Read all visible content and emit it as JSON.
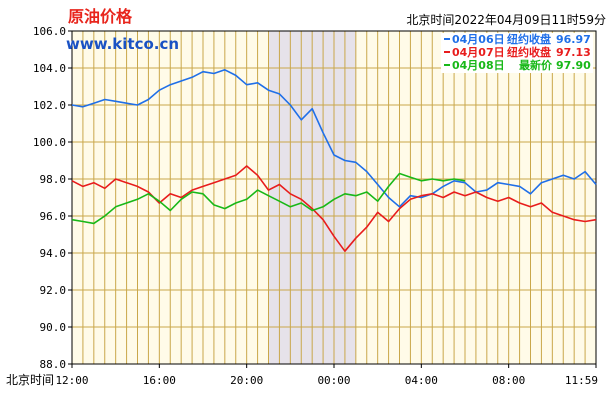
{
  "header": {
    "title": "原油价格",
    "site": "www.kitco.cn",
    "timestamp": "北京时间2022年04月09日11时59分"
  },
  "colors": {
    "background": "#ffffff",
    "plot_bg": "#fffbe8",
    "grid": "#c9a74a",
    "shade": "#e6e2ea",
    "title": "#e8251c",
    "site": "#1a52c4"
  },
  "chart_data": {
    "type": "line",
    "xlabel": "北京时间",
    "x_ticks": [
      "12:00",
      "16:00",
      "20:00",
      "00:00",
      "04:00",
      "08:00",
      "11:59"
    ],
    "x_range": [
      0,
      24
    ],
    "ylim": [
      88,
      106
    ],
    "y_ticks": [
      "88.0",
      "90.0",
      "92.0",
      "94.0",
      "96.0",
      "98.0",
      "100.0",
      "102.0",
      "104.0",
      "106.0"
    ],
    "grid": true,
    "legend_position": "top-right",
    "shaded_region": [
      9.0,
      13.0
    ],
    "series": [
      {
        "name": "04月06日",
        "legend_label": "纽约收盘",
        "legend_value": "96.97",
        "color": "#1f6fe8",
        "x": [
          0,
          0.5,
          1,
          1.5,
          2,
          2.5,
          3,
          3.5,
          4,
          4.5,
          5,
          5.5,
          6,
          6.5,
          7,
          7.5,
          8,
          8.5,
          9,
          9.5,
          10,
          10.5,
          11,
          11.5,
          12,
          12.5,
          13,
          13.5,
          14,
          14.5,
          15,
          15.5,
          16,
          16.5,
          17,
          17.5,
          18,
          18.5,
          19,
          19.5,
          20,
          20.5,
          21,
          21.5,
          22,
          22.5,
          23,
          23.5,
          24
        ],
        "values": [
          102.0,
          101.9,
          102.1,
          102.3,
          102.2,
          102.1,
          102.0,
          102.3,
          102.8,
          103.1,
          103.3,
          103.5,
          103.8,
          103.7,
          103.9,
          103.6,
          103.1,
          103.2,
          102.8,
          102.6,
          102.0,
          101.2,
          101.8,
          100.5,
          99.3,
          99.0,
          98.9,
          98.4,
          97.7,
          97.0,
          96.5,
          97.1,
          97.0,
          97.2,
          97.6,
          97.9,
          97.8,
          97.3,
          97.4,
          97.8,
          97.7,
          97.6,
          97.2,
          97.8,
          98.0,
          98.2,
          98.0,
          98.4,
          97.7
        ]
      },
      {
        "name": "04月07日",
        "legend_label": "纽约收盘",
        "legend_value": "97.13",
        "color": "#e81c1c",
        "x": [
          0,
          0.5,
          1,
          1.5,
          2,
          2.5,
          3,
          3.5,
          4,
          4.5,
          5,
          5.5,
          6,
          6.5,
          7,
          7.5,
          8,
          8.5,
          9,
          9.5,
          10,
          10.5,
          11,
          11.5,
          12,
          12.5,
          13,
          13.5,
          14,
          14.5,
          15,
          15.5,
          16,
          16.5,
          17,
          17.5,
          18,
          18.5,
          19,
          19.5,
          20,
          20.5,
          21,
          21.5,
          22,
          22.5,
          23,
          23.5,
          24
        ],
        "values": [
          97.9,
          97.6,
          97.8,
          97.5,
          98.0,
          97.8,
          97.6,
          97.3,
          96.7,
          97.2,
          97.0,
          97.4,
          97.6,
          97.8,
          98.0,
          98.2,
          98.7,
          98.2,
          97.4,
          97.7,
          97.2,
          96.9,
          96.4,
          95.8,
          94.9,
          94.1,
          94.8,
          95.4,
          96.2,
          95.7,
          96.4,
          96.9,
          97.1,
          97.2,
          97.0,
          97.3,
          97.1,
          97.3,
          97.0,
          96.8,
          97.0,
          96.7,
          96.5,
          96.7,
          96.2,
          96.0,
          95.8,
          95.7,
          95.8
        ]
      },
      {
        "name": "04月08日",
        "legend_label": "最新价",
        "legend_value": "97.90",
        "color": "#18b818",
        "x": [
          0,
          0.5,
          1,
          1.5,
          2,
          2.5,
          3,
          3.5,
          4,
          4.5,
          5,
          5.5,
          6,
          6.5,
          7,
          7.5,
          8,
          8.5,
          9,
          9.5,
          10,
          10.5,
          11,
          11.5,
          12,
          12.5,
          13,
          13.5,
          14,
          14.5,
          15,
          15.5,
          16,
          16.5,
          17,
          17.5,
          18
        ],
        "values": [
          95.8,
          95.7,
          95.6,
          96.0,
          96.5,
          96.7,
          96.9,
          97.2,
          96.8,
          96.3,
          96.9,
          97.3,
          97.2,
          96.6,
          96.4,
          96.7,
          96.9,
          97.4,
          97.1,
          96.8,
          96.5,
          96.7,
          96.3,
          96.5,
          96.9,
          97.2,
          97.1,
          97.3,
          96.8,
          97.6,
          98.3,
          98.1,
          97.9,
          98.0,
          97.9,
          98.0,
          97.9
        ]
      }
    ]
  }
}
